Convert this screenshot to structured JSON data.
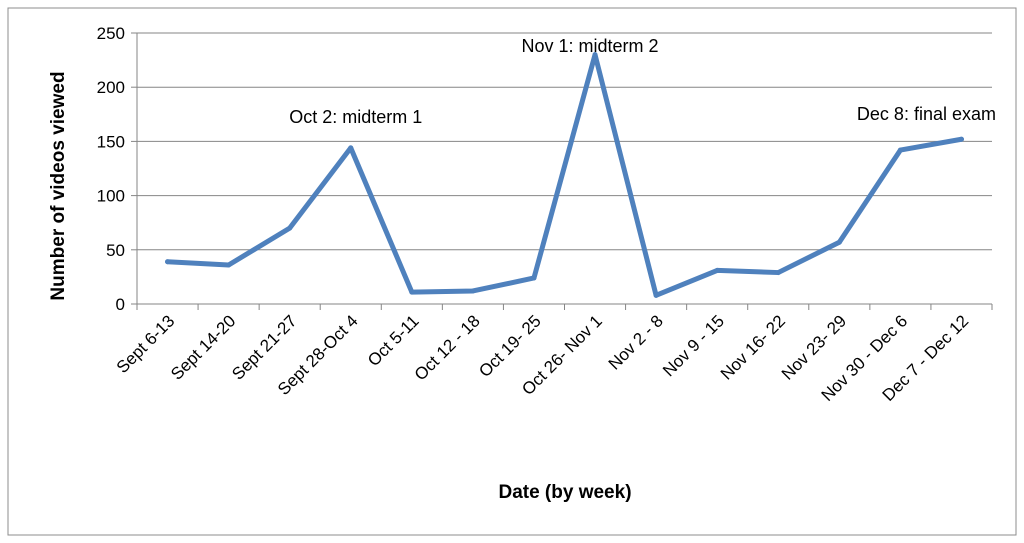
{
  "chart_data": {
    "type": "line",
    "title": "",
    "xlabel": "Date (by week)",
    "ylabel": "Number of videos viewed",
    "ylim": [
      0,
      250
    ],
    "yticks": [
      0,
      50,
      100,
      150,
      200,
      250
    ],
    "grid": true,
    "legend": "none",
    "categories": [
      "Sept 6-13",
      "Sept 14-20",
      "Sept 21-27",
      "Sept 28-Oct 4",
      "Oct 5-11",
      "Oct 12 - 18",
      "Oct 19- 25",
      "Oct 26- Nov 1",
      "Nov 2 - 8",
      "Nov 9 - 15",
      "Nov 16- 22",
      "Nov 23- 29",
      "Nov 30 - Dec 6",
      "Dec 7 - Dec 12"
    ],
    "series": [
      {
        "values": [
          39,
          36,
          70,
          144,
          11,
          12,
          24,
          230,
          8,
          31,
          29,
          57,
          142,
          152
        ],
        "color": "#4F81BD"
      }
    ],
    "annotations": [
      {
        "text": "Oct 2: midterm 1",
        "category_index": 3
      },
      {
        "text": "Nov 1: midterm 2",
        "category_index": 7
      },
      {
        "text": "Dec 8: final exam",
        "category_index": 13
      }
    ]
  }
}
